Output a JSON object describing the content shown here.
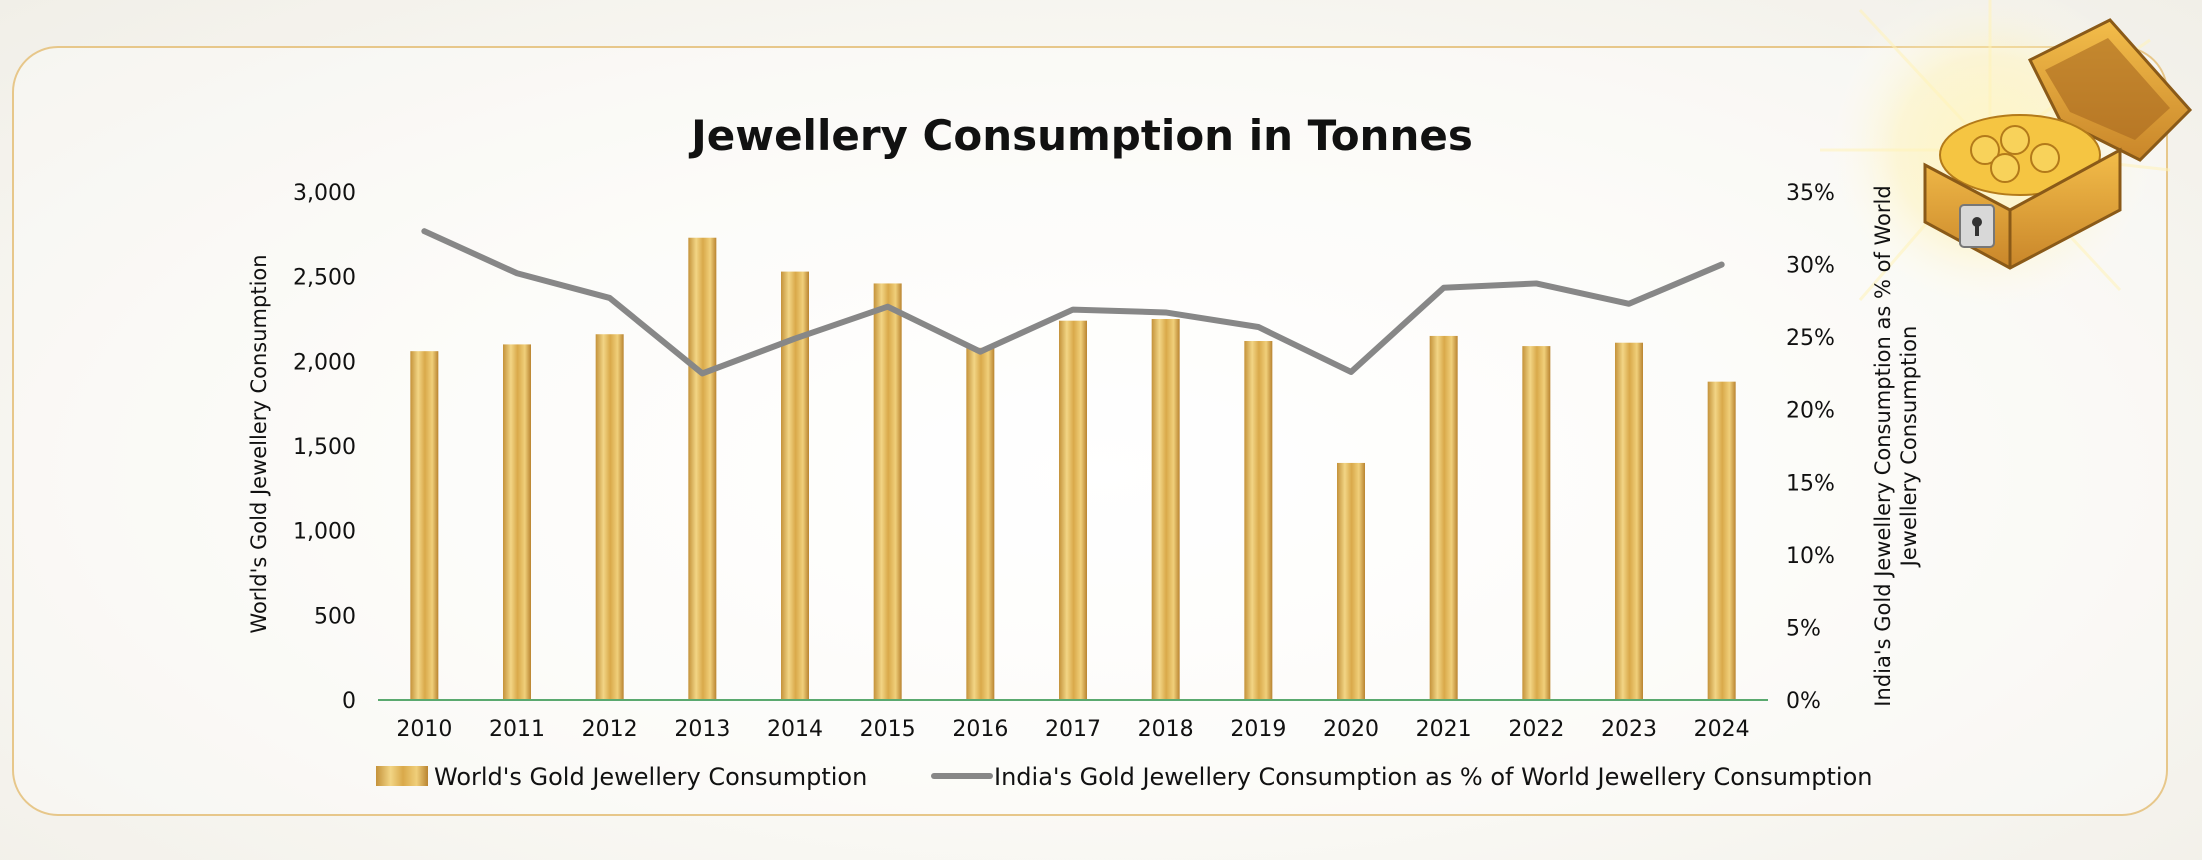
{
  "chart_data": {
    "type": "bar",
    "title": "Jewellery Consumption in Tonnes",
    "categories": [
      "2010",
      "2011",
      "2012",
      "2013",
      "2014",
      "2015",
      "2016",
      "2017",
      "2018",
      "2019",
      "2020",
      "2021",
      "2022",
      "2023",
      "2024"
    ],
    "series": [
      {
        "name": "World's Gold Jewellery Consumption",
        "type": "bar",
        "axis": "left",
        "color": "#d9a94a",
        "values": [
          2060,
          2100,
          2160,
          2730,
          2530,
          2460,
          2080,
          2240,
          2250,
          2120,
          1400,
          2150,
          2090,
          2110,
          1880
        ]
      },
      {
        "name": "India's Gold Jewellery Consumption as % of World Jewellery Consumption",
        "type": "line",
        "axis": "right",
        "color": "#878787",
        "values": [
          32.3,
          29.4,
          27.7,
          22.5,
          24.9,
          27.1,
          24.0,
          26.9,
          26.7,
          25.7,
          22.6,
          28.4,
          28.7,
          27.3,
          30.0
        ]
      }
    ],
    "ylabel": "World's Gold Jewellery Consumption",
    "y2label_lines": [
      "India's Gold Jewellery Consumption as % of  World",
      "Jewellery Consumption"
    ],
    "ylim": [
      0,
      3000
    ],
    "y2lim": [
      0,
      35
    ],
    "yticks": [
      "0",
      "500",
      "1,000",
      "1,500",
      "2,000",
      "2,500",
      "3,000"
    ],
    "y2ticks": [
      "0%",
      "5%",
      "10%",
      "15%",
      "20%",
      "25%",
      "30%",
      "35%"
    ],
    "legend_position": "bottom",
    "grid": false
  }
}
